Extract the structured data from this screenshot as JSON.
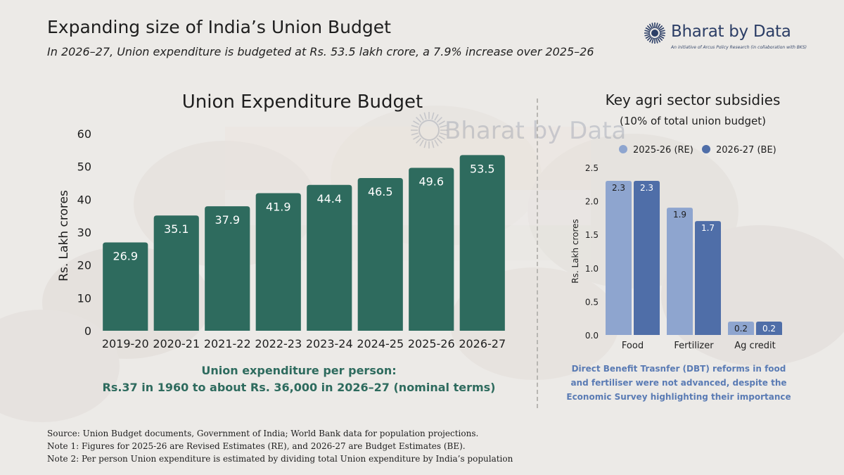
{
  "header": {
    "title": "Expanding size of India’s Union Budget",
    "subtitle": "In 2026–27, Union expenditure is budgeted at Rs. 53.5 lakh crore, a 7.9% increase over 2025–26"
  },
  "logo": {
    "name": "Bharat by Data",
    "tagline": "An initiative of Arcus Policy Research (in collaboration with BKS)",
    "icon": "sun-wheel-icon"
  },
  "watermark": {
    "name": "Bharat by Data"
  },
  "colors": {
    "main_bar": "#2e6b5e",
    "re_bar": "#8ea5cf",
    "be_bar": "#4f6ea8",
    "note_text": "#5a7bb4"
  },
  "chart_data": [
    {
      "type": "bar",
      "title": "Union Expenditure Budget",
      "ylabel": "Rs. Lakh crores",
      "xlabel": "",
      "ylim": [
        0,
        60
      ],
      "yticks": [
        0,
        10,
        20,
        30,
        40,
        50,
        60
      ],
      "categories": [
        "2019-20",
        "2020-21",
        "2021-22",
        "2022-23",
        "2023-24",
        "2024-25",
        "2025-26",
        "2026-27"
      ],
      "values": [
        26.9,
        35.1,
        37.9,
        41.9,
        44.4,
        46.5,
        49.6,
        53.5
      ],
      "data_labels": [
        "26.9",
        "35.1",
        "37.9",
        "41.9",
        "44.4",
        "46.5",
        "49.6",
        "53.5"
      ],
      "grid": false
    },
    {
      "type": "bar",
      "title": "Key agri sector subsidies",
      "subtitle": "(10% of total union budget)",
      "ylabel": "Rs. Lakh crores",
      "xlabel": "",
      "ylim": [
        0,
        2.5
      ],
      "yticks": [
        "0.0",
        "0.5",
        "1.0",
        "1.5",
        "2.0",
        "2.5"
      ],
      "categories": [
        "Food",
        "Fertilizer",
        "Ag credit"
      ],
      "series": [
        {
          "name": "2025-26 (RE)",
          "values": [
            2.3,
            1.9,
            0.2
          ],
          "labels": [
            "2.3",
            "1.9",
            "0.2"
          ]
        },
        {
          "name": "2026-27 (BE)",
          "values": [
            2.3,
            1.7,
            0.2
          ],
          "labels": [
            "2.3",
            "1.7",
            "0.2"
          ]
        }
      ],
      "legend_position": "top",
      "grid": false
    }
  ],
  "per_person": {
    "line1": "Union expenditure per person:",
    "line2": "Rs.37 in 1960 to about Rs. 36,000 in 2026–27 (nominal terms)"
  },
  "side_note": {
    "text": "Direct Benefit Trasnfer (DBT) reforms in food and fertiliser were not advanced, despite the Economic Survey highlighting their importance"
  },
  "footer": {
    "source": "Source: Union Budget documents, Government of India; World Bank data for population projections.",
    "note1": "Note 1: Figures for 2025-26 are Revised Estimates (RE), and 2026-27 are Budget Estimates (BE).",
    "note2": "Note 2: Per person Union expenditure is estimated by dividing total Union expenditure by India’s population"
  }
}
